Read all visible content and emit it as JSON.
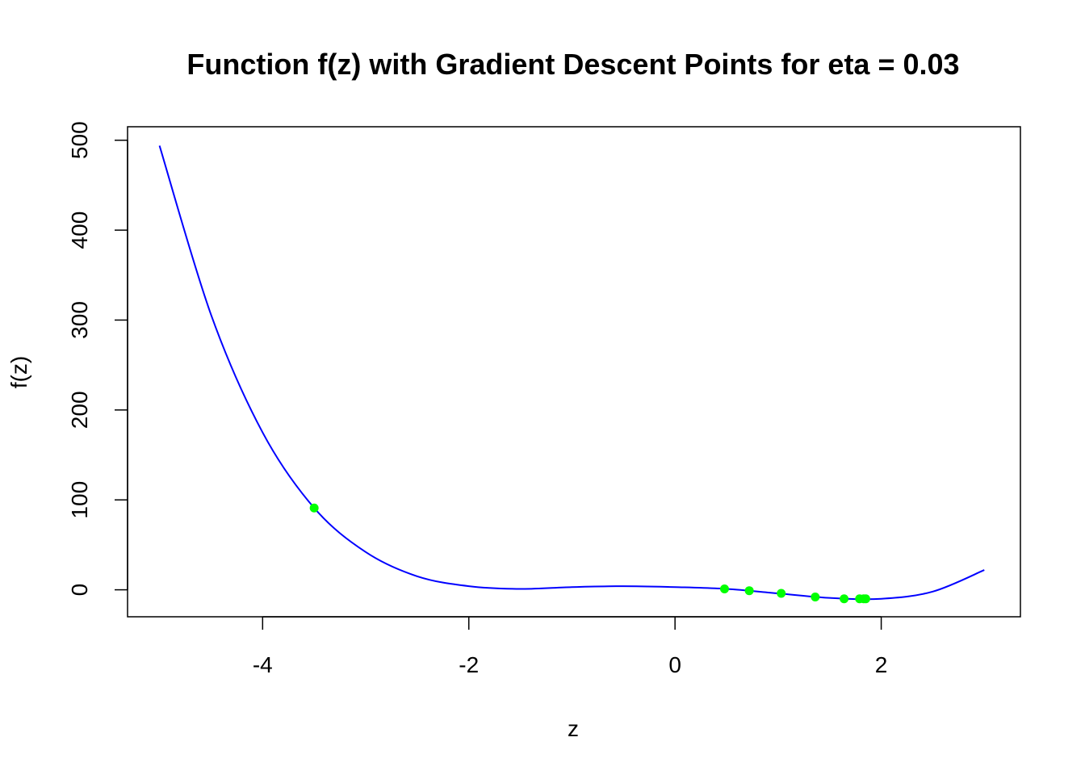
{
  "chart_data": {
    "type": "line",
    "title": "Function f(z) with Gradient Descent Points for eta = 0.03",
    "xlabel": "z",
    "ylabel": "f(z)",
    "xlim": [
      -5.31,
      3.35
    ],
    "ylim": [
      -30,
      515
    ],
    "xticks": [
      -4,
      -2,
      0,
      2
    ],
    "yticks": [
      0,
      100,
      200,
      300,
      400,
      500
    ],
    "grid": false,
    "series": [
      {
        "type": "line",
        "color": "#0000ff",
        "x": [
          -5.0,
          -4.5,
          -4.0,
          -3.5,
          -3.0,
          -2.5,
          -2.0,
          -1.5,
          -1.0,
          -0.5,
          0.0,
          0.5,
          1.0,
          1.5,
          2.0,
          2.5,
          3.0
        ],
        "y": [
          494,
          306,
          175,
          91,
          42,
          15,
          4,
          1,
          3,
          4,
          3,
          1,
          -4,
          -9,
          -10,
          -2,
          22
        ]
      },
      {
        "type": "scatter",
        "color": "#00ff00",
        "x": [
          -3.5,
          0.48,
          0.72,
          1.03,
          1.36,
          1.64,
          1.79,
          1.83,
          1.85
        ],
        "y": [
          91,
          1,
          -1,
          -4,
          -8,
          -10,
          -10,
          -10,
          -10
        ]
      }
    ]
  }
}
